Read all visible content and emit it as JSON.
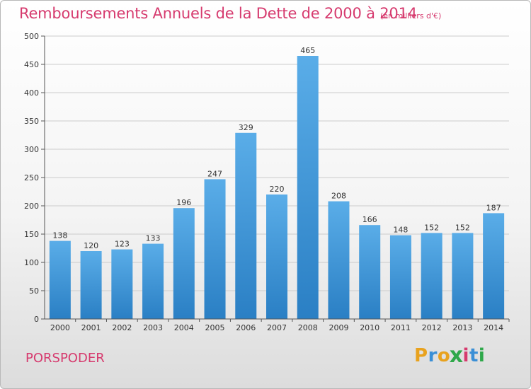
{
  "header": {
    "title": "Remboursements Annuels de la Dette de 2000 à 2014",
    "unit": "(en milliers d'€)"
  },
  "footer": {
    "commune": "PORSPODER",
    "brand": "Proxiti"
  },
  "colors": {
    "title": "#d63a6e",
    "bar_top": "#5aade8",
    "bar_bottom": "#2a7fc4",
    "grid": "#cccccc",
    "axis": "#555555"
  },
  "chart_data": {
    "type": "bar",
    "title": "Remboursements Annuels de la Dette de 2000 à 2014",
    "subtitle": "(en milliers d'€)",
    "xlabel": "",
    "ylabel": "",
    "categories": [
      "2000",
      "2001",
      "2002",
      "2003",
      "2004",
      "2005",
      "2006",
      "2007",
      "2008",
      "2009",
      "2010",
      "2011",
      "2012",
      "2013",
      "2014"
    ],
    "values": [
      138,
      120,
      123,
      133,
      196,
      247,
      329,
      220,
      465,
      208,
      166,
      148,
      152,
      152,
      187
    ],
    "ylim": [
      0,
      500
    ],
    "yticks": [
      0,
      50,
      100,
      150,
      200,
      250,
      300,
      350,
      400,
      450,
      500
    ],
    "grid": true,
    "data_labels": true
  }
}
